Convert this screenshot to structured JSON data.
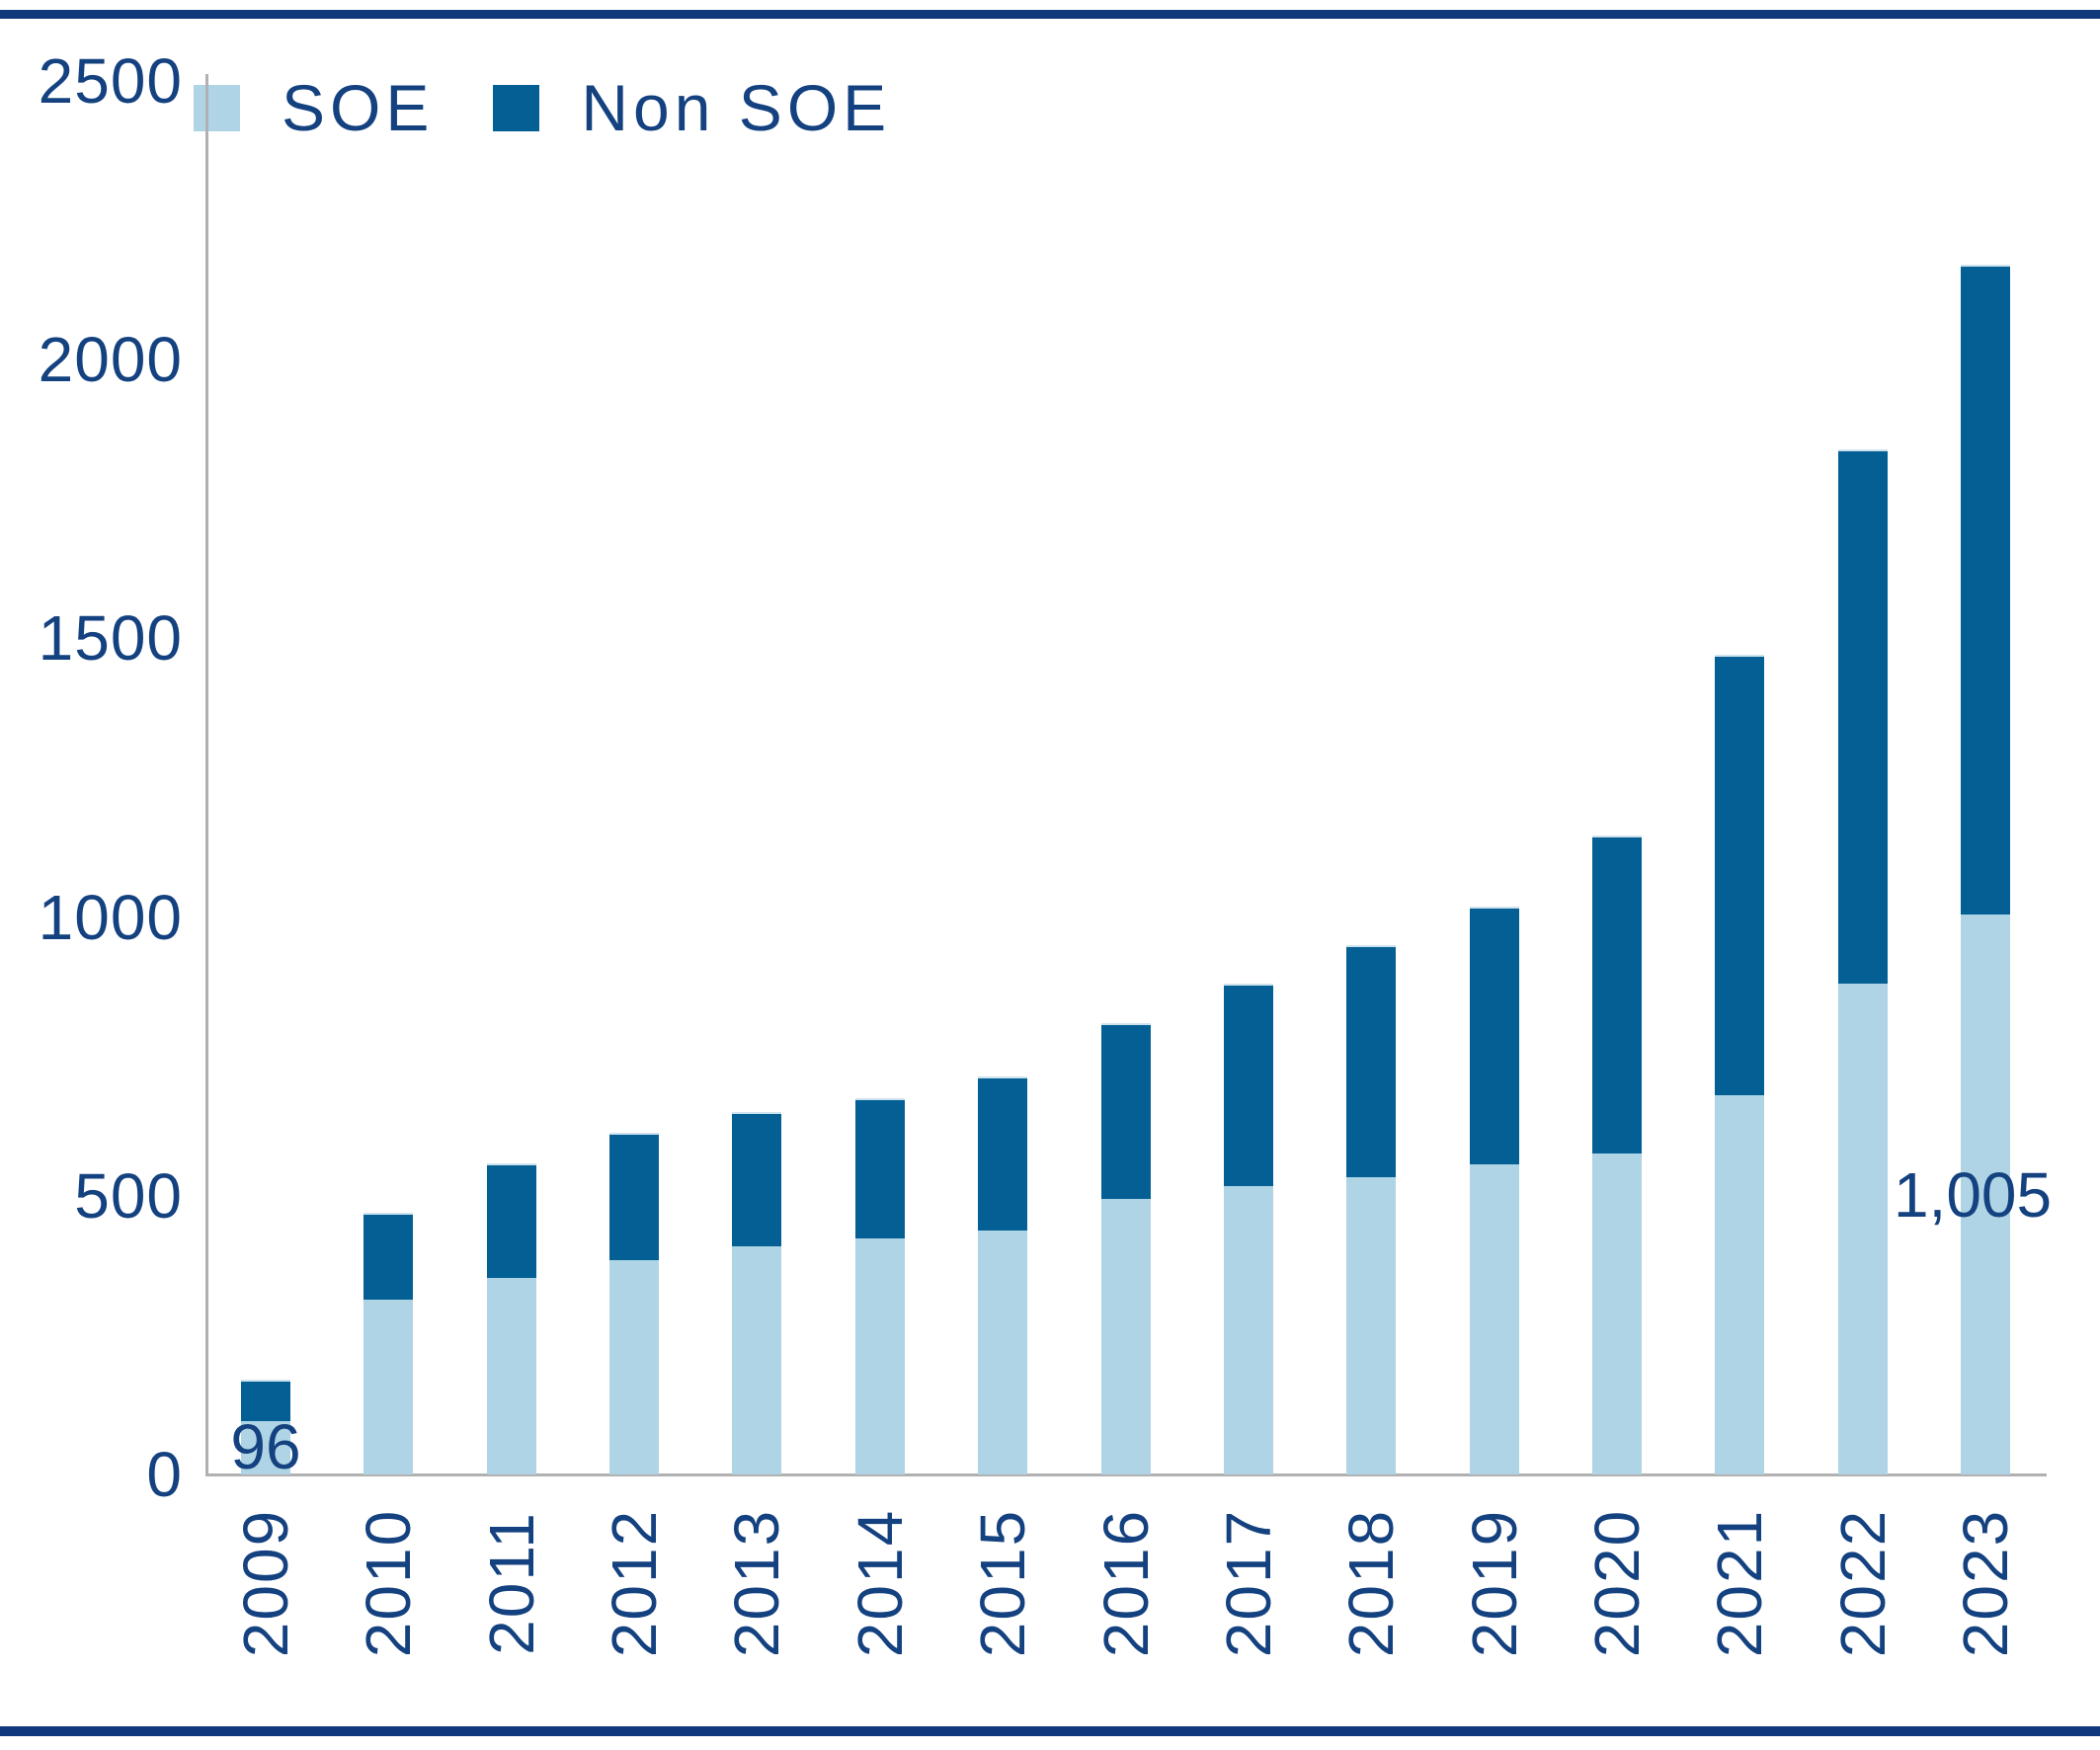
{
  "colors": {
    "soe": "#aed4e5",
    "non_soe": "#046094",
    "text": "#14417f",
    "band": "#10397b",
    "axis_line": "#b1b1b1",
    "segment_edge": "#cfe3ee"
  },
  "legend": {
    "items": [
      {
        "label": "SOE",
        "color": "#aed4e5"
      },
      {
        "label": "Non SOE",
        "color": "#046094"
      }
    ]
  },
  "chart_data": {
    "type": "bar",
    "stacked": true,
    "title": "",
    "xlabel": "",
    "ylabel": "",
    "categories": [
      "2009",
      "2010",
      "2011",
      "2012",
      "2013",
      "2014",
      "2015",
      "2016",
      "2017",
      "2018",
      "2019",
      "2020",
      "2021",
      "2022",
      "2023"
    ],
    "series": [
      {
        "name": "SOE",
        "color": "#aed4e5",
        "values": [
          96,
          313,
          352,
          384,
          409,
          423,
          437,
          494,
          517,
          533,
          557,
          575,
          681,
          880,
          1005
        ]
      },
      {
        "name": "Non SOE",
        "color": "#046094",
        "values": [
          74,
          156,
          206,
          228,
          241,
          251,
          276,
          315,
          363,
          417,
          462,
          570,
          790,
          959,
          1165
        ]
      }
    ],
    "ylim": [
      0,
      2500
    ],
    "y_ticks": [
      0,
      500,
      1000,
      1500,
      2000,
      2500
    ],
    "grid": false,
    "legend_position": "top-left",
    "x_tick_rotation": -90,
    "data_labels": [
      {
        "category": "2009",
        "series": "SOE",
        "text": "96",
        "placement": "inside-bottom"
      },
      {
        "category": "2023",
        "series": "SOE",
        "text": "1,005",
        "placement": "segment-middle-left"
      }
    ]
  }
}
